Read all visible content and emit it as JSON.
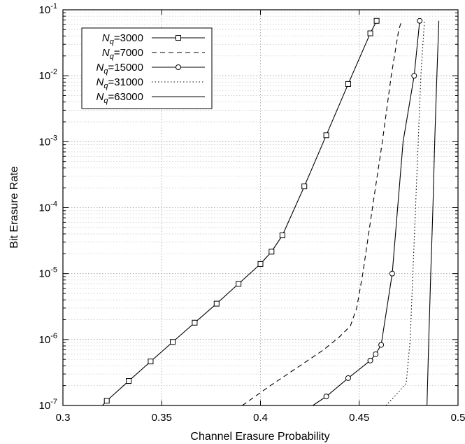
{
  "chart_data": {
    "type": "line",
    "title": "",
    "xlabel": "Channel Erasure Probability",
    "ylabel": "Bit Erasure Rate",
    "xlim": [
      0.3,
      0.5
    ],
    "ylim": [
      1e-07,
      0.1
    ],
    "yscale": "log",
    "grid": true,
    "legend_position": "top-left",
    "x_ticks": [
      {
        "value": 0.3,
        "label": "0.3"
      },
      {
        "value": 0.35,
        "label": "0.35"
      },
      {
        "value": 0.4,
        "label": "0.4"
      },
      {
        "value": 0.45,
        "label": "0.45"
      },
      {
        "value": 0.5,
        "label": "0.5"
      }
    ],
    "y_ticks": [
      {
        "value": 1e-07,
        "base": "10",
        "exp": "-7"
      },
      {
        "value": 1e-06,
        "base": "10",
        "exp": "-6"
      },
      {
        "value": 1e-05,
        "base": "10",
        "exp": "-5"
      },
      {
        "value": 0.0001,
        "base": "10",
        "exp": "-4"
      },
      {
        "value": 0.001,
        "base": "10",
        "exp": "-3"
      },
      {
        "value": 0.01,
        "base": "10",
        "exp": "-2"
      },
      {
        "value": 0.1,
        "base": "10",
        "exp": "-1"
      }
    ],
    "series": [
      {
        "name_main": "N",
        "name_sub": "q",
        "name_rest": "=3000",
        "style": "solid",
        "marker": "square",
        "points": [
          [
            0.32,
            1e-07
          ],
          [
            0.3222,
            1.18e-07
          ],
          [
            0.3333,
            2.35e-07
          ],
          [
            0.3444,
            4.65e-07
          ],
          [
            0.3556,
            9.2e-07
          ],
          [
            0.3667,
            1.8e-06
          ],
          [
            0.3778,
            3.5e-06
          ],
          [
            0.3889,
            7e-06
          ],
          [
            0.4,
            1.4e-05
          ],
          [
            0.4056,
            2.15e-05
          ],
          [
            0.4111,
            3.8e-05
          ],
          [
            0.4222,
            0.00021
          ],
          [
            0.4333,
            0.00125
          ],
          [
            0.4444,
            0.0075
          ],
          [
            0.4556,
            0.044
          ],
          [
            0.4588,
            0.068
          ]
        ],
        "markers": [
          [
            0.3222,
            1.18e-07
          ],
          [
            0.3333,
            2.35e-07
          ],
          [
            0.3444,
            4.65e-07
          ],
          [
            0.3556,
            9.2e-07
          ],
          [
            0.3667,
            1.8e-06
          ],
          [
            0.3778,
            3.5e-06
          ],
          [
            0.3889,
            7e-06
          ],
          [
            0.4,
            1.4e-05
          ],
          [
            0.4056,
            2.15e-05
          ],
          [
            0.4111,
            3.8e-05
          ],
          [
            0.4222,
            0.00021
          ],
          [
            0.4333,
            0.00125
          ],
          [
            0.4444,
            0.0075
          ],
          [
            0.4556,
            0.044
          ],
          [
            0.4588,
            0.068
          ]
        ]
      },
      {
        "name_main": "N",
        "name_sub": "q",
        "name_rest": "=7000",
        "style": "dashed",
        "marker": "none",
        "points": [
          [
            0.3908,
            1e-07
          ],
          [
            0.405,
            2e-07
          ],
          [
            0.42,
            4e-07
          ],
          [
            0.432,
            7e-07
          ],
          [
            0.44,
            1.1e-06
          ],
          [
            0.4455,
            1.6e-06
          ],
          [
            0.4487,
            3e-06
          ],
          [
            0.4518,
            1e-05
          ],
          [
            0.4567,
            0.0001
          ],
          [
            0.4617,
            0.001
          ],
          [
            0.4662,
            0.01
          ],
          [
            0.47,
            0.05
          ],
          [
            0.4715,
            0.068
          ]
        ],
        "markers": []
      },
      {
        "name_main": "N",
        "name_sub": "q",
        "name_rest": "=15000",
        "style": "solid",
        "marker": "circle",
        "points": [
          [
            0.4265,
            1e-07
          ],
          [
            0.4333,
            1.37e-07
          ],
          [
            0.4444,
            2.6e-07
          ],
          [
            0.4556,
            4.8e-07
          ],
          [
            0.4583,
            6e-07
          ],
          [
            0.4611,
            8.3e-07
          ],
          [
            0.4667,
            1e-05
          ],
          [
            0.4722,
            0.001
          ],
          [
            0.4778,
            0.01
          ],
          [
            0.4806,
            0.068
          ]
        ],
        "markers": [
          [
            0.4333,
            1.37e-07
          ],
          [
            0.4444,
            2.6e-07
          ],
          [
            0.4556,
            4.8e-07
          ],
          [
            0.4583,
            6e-07
          ],
          [
            0.4611,
            8.3e-07
          ],
          [
            0.4667,
            1e-05
          ],
          [
            0.4778,
            0.01
          ],
          [
            0.4806,
            0.068
          ]
        ]
      },
      {
        "name_main": "N",
        "name_sub": "q",
        "name_rest": "=31000",
        "style": "dotted",
        "marker": "none",
        "points": [
          [
            0.4635,
            1e-07
          ],
          [
            0.47,
            1.6e-07
          ],
          [
            0.4738,
            2.2e-07
          ],
          [
            0.4758,
            1e-06
          ],
          [
            0.4785,
            0.0001
          ],
          [
            0.4812,
            0.01
          ],
          [
            0.483,
            0.068
          ]
        ],
        "markers": []
      },
      {
        "name_main": "N",
        "name_sub": "q",
        "name_rest": "=63000",
        "style": "solid",
        "marker": "none",
        "points": [
          [
            0.4843,
            1e-07
          ],
          [
            0.4852,
            1e-06
          ],
          [
            0.4862,
            1e-05
          ],
          [
            0.4873,
            0.0001
          ],
          [
            0.4882,
            0.001
          ],
          [
            0.4893,
            0.01
          ],
          [
            0.4903,
            0.068
          ]
        ],
        "markers": []
      }
    ]
  }
}
